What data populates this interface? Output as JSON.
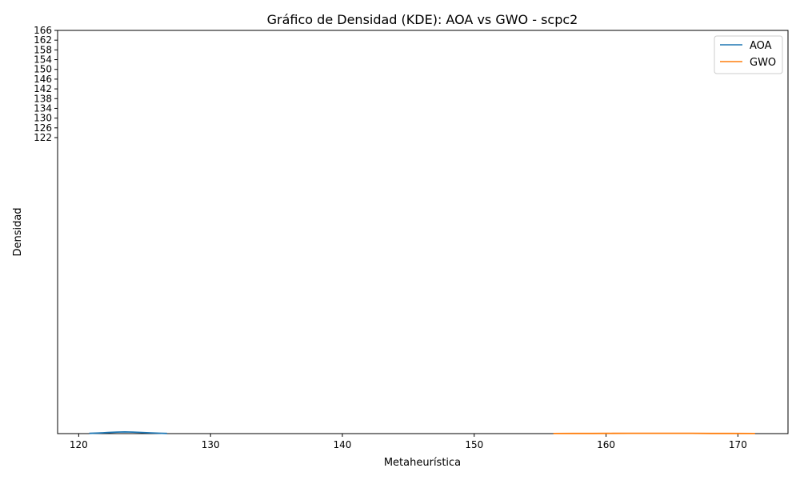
{
  "chart_data": {
    "type": "line",
    "title": "Gráfico de Densidad (KDE): AOA vs GWO - scpc2",
    "xlabel": "Metaheurística",
    "ylabel": "Densidad",
    "xlim": [
      118.4,
      173.8
    ],
    "xticks": [
      120,
      130,
      140,
      150,
      160,
      170
    ],
    "yticks": [
      122,
      126,
      130,
      134,
      138,
      142,
      146,
      150,
      154,
      158,
      162,
      166
    ],
    "legend_position": "top-right",
    "grid": false,
    "series": [
      {
        "name": "AOA",
        "color": "#1f77b4",
        "x": [
          120.8,
          121.5,
          122.2,
          122.9,
          123.5,
          124.1,
          124.8,
          125.5,
          126.1,
          126.7
        ],
        "y": [
          0.05,
          0.12,
          0.22,
          0.31,
          0.35,
          0.32,
          0.24,
          0.15,
          0.08,
          0.04
        ]
      },
      {
        "name": "GWO",
        "color": "#ff7f0e",
        "x": [
          156.0,
          157.5,
          159.0,
          160.5,
          162.0,
          163.5,
          165.0,
          166.5,
          168.0,
          169.5,
          171.3
        ],
        "y": [
          0.02,
          0.03,
          0.04,
          0.05,
          0.06,
          0.07,
          0.07,
          0.06,
          0.04,
          0.03,
          0.02
        ]
      }
    ]
  }
}
